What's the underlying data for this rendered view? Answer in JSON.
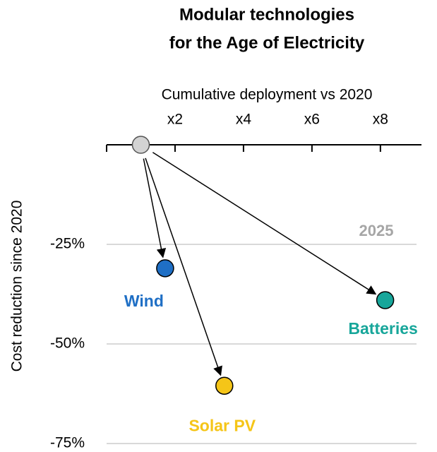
{
  "chart_data": {
    "type": "scatter",
    "title": [
      "Modular technologies",
      "for the Age of Electricity"
    ],
    "x_label": "Cumulative deployment vs 2020",
    "y_label": "Cost reduction since 2020",
    "annotation": "2025",
    "xlim": [
      0,
      9.2
    ],
    "ylim": [
      -75,
      0
    ],
    "xticks": [
      {
        "value": 2,
        "label": "x2"
      },
      {
        "value": 4,
        "label": "x4"
      },
      {
        "value": 6,
        "label": "x6"
      },
      {
        "value": 8,
        "label": "x8"
      }
    ],
    "yticks": [
      {
        "value": -25,
        "label": "-25%"
      },
      {
        "value": -50,
        "label": "-50%"
      },
      {
        "value": -75,
        "label": "-75%"
      }
    ],
    "grid": true,
    "origin": {
      "x": 1,
      "y": 0,
      "color": "#d3d3d3"
    },
    "series": [
      {
        "name": "Wind",
        "color": "#1f6fc5",
        "x": 1.71,
        "y": -31
      },
      {
        "name": "Solar PV",
        "color": "#f5c518",
        "x": 3.44,
        "y": -60.5
      },
      {
        "name": "Batteries",
        "color": "#17a69a",
        "x": 8.14,
        "y": -39
      }
    ]
  }
}
